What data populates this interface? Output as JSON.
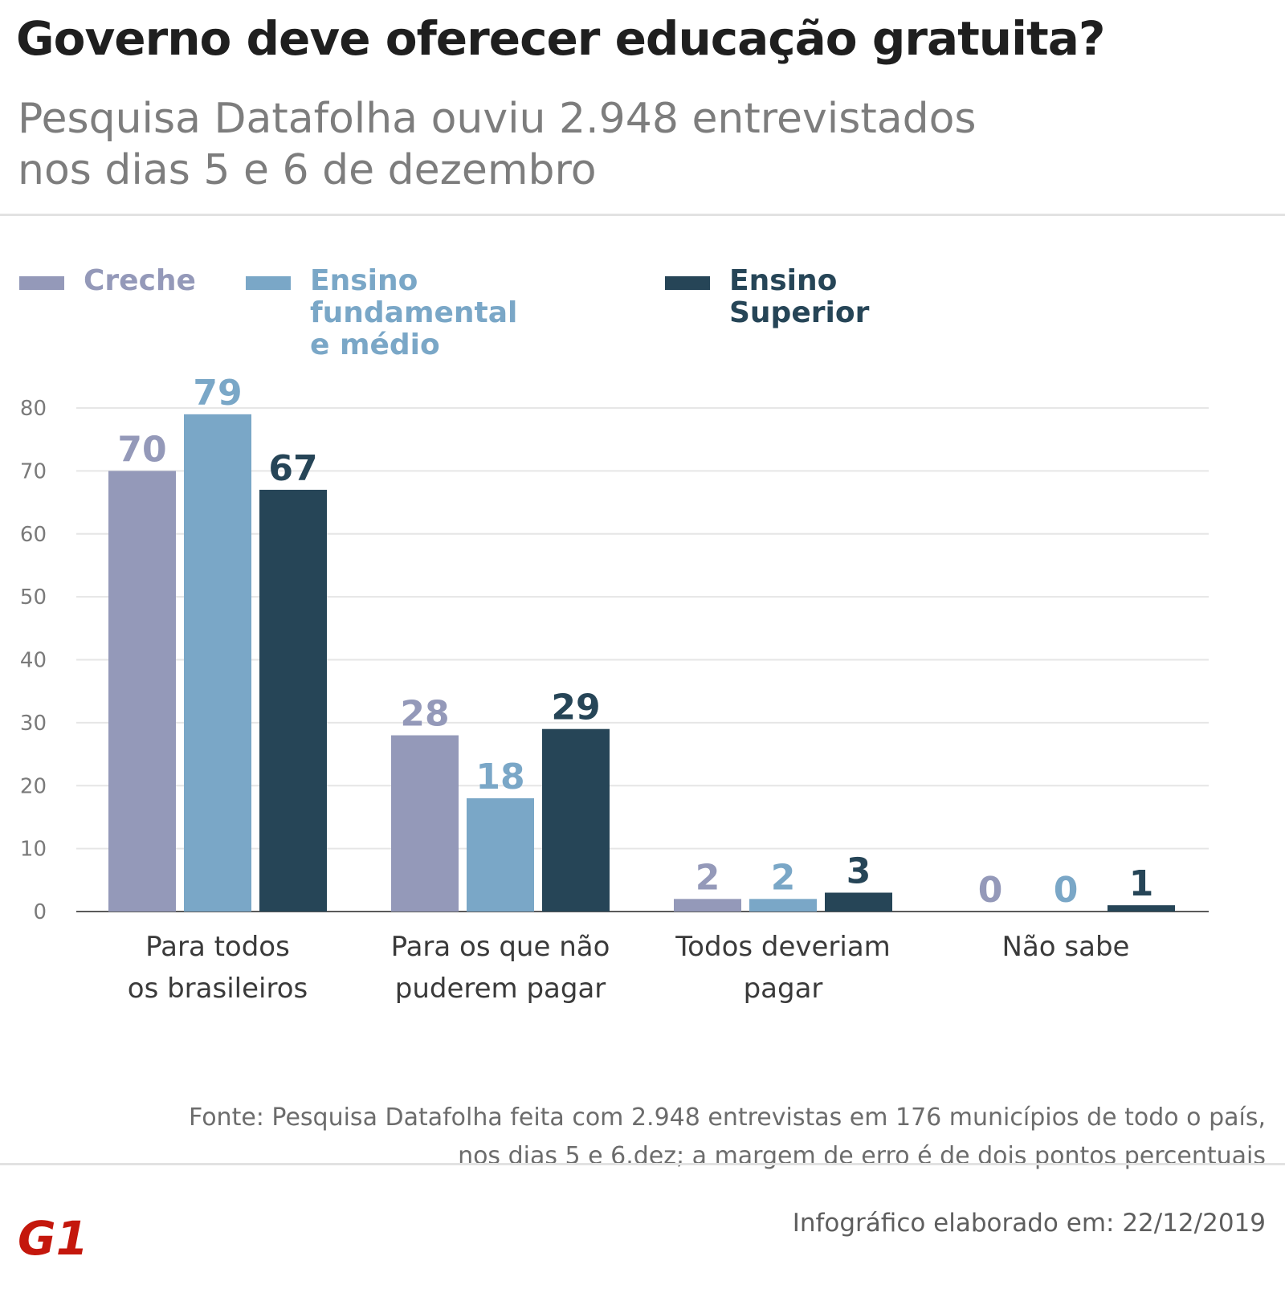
{
  "title": "Governo deve oferecer educação gratuita?",
  "subtitle": "Pesquisa Datafolha ouviu 2.948 entrevistados\nnos dias 5 e 6 de dezembro",
  "legend": [
    {
      "label": "Creche",
      "color": "#9499b9"
    },
    {
      "label": "Ensino fundamental\ne médio",
      "color": "#7aa7c7"
    },
    {
      "label": "Ensino Superior",
      "color": "#264557"
    }
  ],
  "chart_data": {
    "type": "bar",
    "categories": [
      "Para todos\nos brasileiros",
      "Para os que não\npuderem pagar",
      "Todos deveriam\npagar",
      "Não sabe"
    ],
    "series": [
      {
        "name": "Creche",
        "values": [
          70,
          28,
          2,
          0
        ],
        "color": "#9499b9"
      },
      {
        "name": "Ensino fundamental e médio",
        "values": [
          79,
          18,
          2,
          0
        ],
        "color": "#7aa7c7"
      },
      {
        "name": "Ensino Superior",
        "values": [
          67,
          29,
          3,
          1
        ],
        "color": "#264557"
      }
    ],
    "ylim": [
      0,
      80
    ],
    "yticks": [
      0,
      10,
      20,
      30,
      40,
      50,
      60,
      70,
      80
    ],
    "grid": true,
    "legend_position": "top-left"
  },
  "source": "Fonte: Pesquisa Datafolha feita com 2.948 entrevistas em 176 municípios de todo o país, nos dias 5 e 6.dez; a margem de erro é de dois pontos percentuais",
  "footer_date": "Infográfico elaborado em: 22/12/2019",
  "logo_text": "G1",
  "logo_color": "#c4170c"
}
